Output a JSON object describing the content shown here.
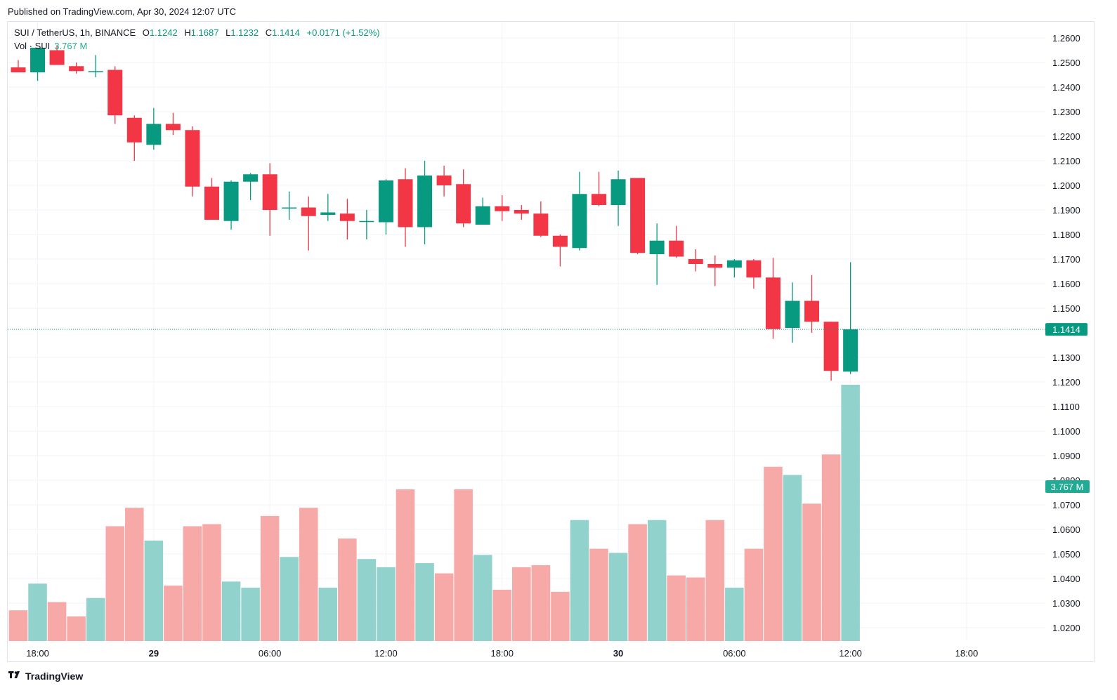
{
  "published": "Published on TradingView.com, Apr 30, 2024 12:07 UTC",
  "legend": {
    "symbol": "SUI / TetherUS, 1h, BINANCE",
    "o_label": "O",
    "o_value": "1.1242",
    "h_label": "H",
    "h_value": "1.1687",
    "l_label": "L",
    "l_value": "1.1232",
    "c_label": "C",
    "c_value": "1.1414",
    "change": "+0.0171 (+1.52%)",
    "vol_label": "Vol · SUI",
    "vol_value": "3.767 M"
  },
  "brand": "TradingView",
  "colors": {
    "up": "#089981",
    "down": "#f23645",
    "up_vol": "#92d2cc",
    "down_vol": "#f7a9a7",
    "grid": "#f0f3fa"
  },
  "chart_data": {
    "type": "candlestick",
    "y_ticks": [
      "1.2600",
      "1.2500",
      "1.2400",
      "1.2300",
      "1.2200",
      "1.2100",
      "1.2000",
      "1.1900",
      "1.1800",
      "1.1700",
      "1.1600",
      "1.1500",
      "1.1300",
      "1.1200",
      "1.1100",
      "1.1000",
      "1.0900",
      "1.0800",
      "1.0700",
      "1.0600",
      "1.0500",
      "1.0400",
      "1.0300",
      "1.0200"
    ],
    "ylim": [
      1.015,
      1.265
    ],
    "x_ticks": [
      {
        "label": "18:00",
        "index": 1,
        "bold": false
      },
      {
        "label": "29",
        "index": 7,
        "bold": true
      },
      {
        "label": "06:00",
        "index": 13,
        "bold": false
      },
      {
        "label": "12:00",
        "index": 19,
        "bold": false
      },
      {
        "label": "18:00",
        "index": 25,
        "bold": false
      },
      {
        "label": "30",
        "index": 31,
        "bold": true
      },
      {
        "label": "06:00",
        "index": 37,
        "bold": false
      },
      {
        "label": "12:00",
        "index": 43,
        "bold": false
      },
      {
        "label": "18:00",
        "index": 49,
        "bold": false
      }
    ],
    "last_price": "1.1414",
    "last_volume": "3.767 M",
    "volume_max_m": 3.767,
    "candles": [
      {
        "o": 1.248,
        "h": 1.251,
        "l": 1.246,
        "c": 1.246
      },
      {
        "o": 1.246,
        "h": 1.256,
        "l": 1.2425,
        "c": 1.256
      },
      {
        "o": 1.255,
        "h": 1.257,
        "l": 1.249,
        "c": 1.249
      },
      {
        "o": 1.2485,
        "h": 1.25,
        "l": 1.2455,
        "c": 1.2465
      },
      {
        "o": 1.2465,
        "h": 1.253,
        "l": 1.244,
        "c": 1.2465
      },
      {
        "o": 1.247,
        "h": 1.2485,
        "l": 1.225,
        "c": 1.2285
      },
      {
        "o": 1.2275,
        "h": 1.2285,
        "l": 1.21,
        "c": 1.2175
      },
      {
        "o": 1.2165,
        "h": 1.2315,
        "l": 1.2145,
        "c": 1.225
      },
      {
        "o": 1.225,
        "h": 1.2295,
        "l": 1.2205,
        "c": 1.2225
      },
      {
        "o": 1.2225,
        "h": 1.224,
        "l": 1.1955,
        "c": 1.1995
      },
      {
        "o": 1.1995,
        "h": 1.203,
        "l": 1.186,
        "c": 1.186
      },
      {
        "o": 1.1855,
        "h": 1.202,
        "l": 1.182,
        "c": 1.2015
      },
      {
        "o": 1.2015,
        "h": 1.205,
        "l": 1.194,
        "c": 1.2045
      },
      {
        "o": 1.2045,
        "h": 1.209,
        "l": 1.1795,
        "c": 1.19
      },
      {
        "o": 1.191,
        "h": 1.1975,
        "l": 1.186,
        "c": 1.191
      },
      {
        "o": 1.191,
        "h": 1.1955,
        "l": 1.1735,
        "c": 1.1875
      },
      {
        "o": 1.188,
        "h": 1.1965,
        "l": 1.1855,
        "c": 1.189
      },
      {
        "o": 1.1885,
        "h": 1.1945,
        "l": 1.178,
        "c": 1.1855
      },
      {
        "o": 1.1855,
        "h": 1.19,
        "l": 1.178,
        "c": 1.1855
      },
      {
        "o": 1.185,
        "h": 1.2025,
        "l": 1.18,
        "c": 1.202
      },
      {
        "o": 1.2025,
        "h": 1.207,
        "l": 1.175,
        "c": 1.183
      },
      {
        "o": 1.183,
        "h": 1.21,
        "l": 1.176,
        "c": 1.204
      },
      {
        "o": 1.204,
        "h": 1.208,
        "l": 1.1955,
        "c": 1.2
      },
      {
        "o": 1.2005,
        "h": 1.2065,
        "l": 1.183,
        "c": 1.1845
      },
      {
        "o": 1.184,
        "h": 1.195,
        "l": 1.184,
        "c": 1.1915
      },
      {
        "o": 1.1915,
        "h": 1.196,
        "l": 1.1855,
        "c": 1.1895
      },
      {
        "o": 1.19,
        "h": 1.192,
        "l": 1.186,
        "c": 1.1885
      },
      {
        "o": 1.1885,
        "h": 1.1935,
        "l": 1.179,
        "c": 1.1795
      },
      {
        "o": 1.1795,
        "h": 1.18,
        "l": 1.167,
        "c": 1.175
      },
      {
        "o": 1.1745,
        "h": 1.2055,
        "l": 1.1735,
        "c": 1.1965
      },
      {
        "o": 1.1965,
        "h": 1.2055,
        "l": 1.1915,
        "c": 1.192
      },
      {
        "o": 1.192,
        "h": 1.206,
        "l": 1.1835,
        "c": 1.2025
      },
      {
        "o": 1.203,
        "h": 1.203,
        "l": 1.172,
        "c": 1.1725
      },
      {
        "o": 1.172,
        "h": 1.1845,
        "l": 1.1595,
        "c": 1.1775
      },
      {
        "o": 1.1775,
        "h": 1.1835,
        "l": 1.1705,
        "c": 1.171
      },
      {
        "o": 1.17,
        "h": 1.174,
        "l": 1.165,
        "c": 1.168
      },
      {
        "o": 1.168,
        "h": 1.1715,
        "l": 1.159,
        "c": 1.1665
      },
      {
        "o": 1.1665,
        "h": 1.17,
        "l": 1.1625,
        "c": 1.1695
      },
      {
        "o": 1.1695,
        "h": 1.17,
        "l": 1.158,
        "c": 1.1625
      },
      {
        "o": 1.1625,
        "h": 1.1705,
        "l": 1.1375,
        "c": 1.1415
      },
      {
        "o": 1.142,
        "h": 1.1605,
        "l": 1.136,
        "c": 1.153
      },
      {
        "o": 1.153,
        "h": 1.1635,
        "l": 1.14,
        "c": 1.1445
      },
      {
        "o": 1.1445,
        "h": 1.1445,
        "l": 1.1205,
        "c": 1.1245
      },
      {
        "o": 1.1242,
        "h": 1.1687,
        "l": 1.1232,
        "c": 1.1414
      }
    ],
    "volumes": [
      0.75,
      1.4,
      0.95,
      0.6,
      1.05,
      2.8,
      3.25,
      2.45,
      1.35,
      2.8,
      2.85,
      1.45,
      1.3,
      3.05,
      2.05,
      3.25,
      1.3,
      2.5,
      2.0,
      1.8,
      3.7,
      1.9,
      1.65,
      3.7,
      2.1,
      1.25,
      1.8,
      1.85,
      1.2,
      2.95,
      2.25,
      2.15,
      2.85,
      2.95,
      1.6,
      1.55,
      2.95,
      1.3,
      2.25,
      4.25,
      4.05,
      3.35,
      4.55,
      6.25
    ]
  }
}
